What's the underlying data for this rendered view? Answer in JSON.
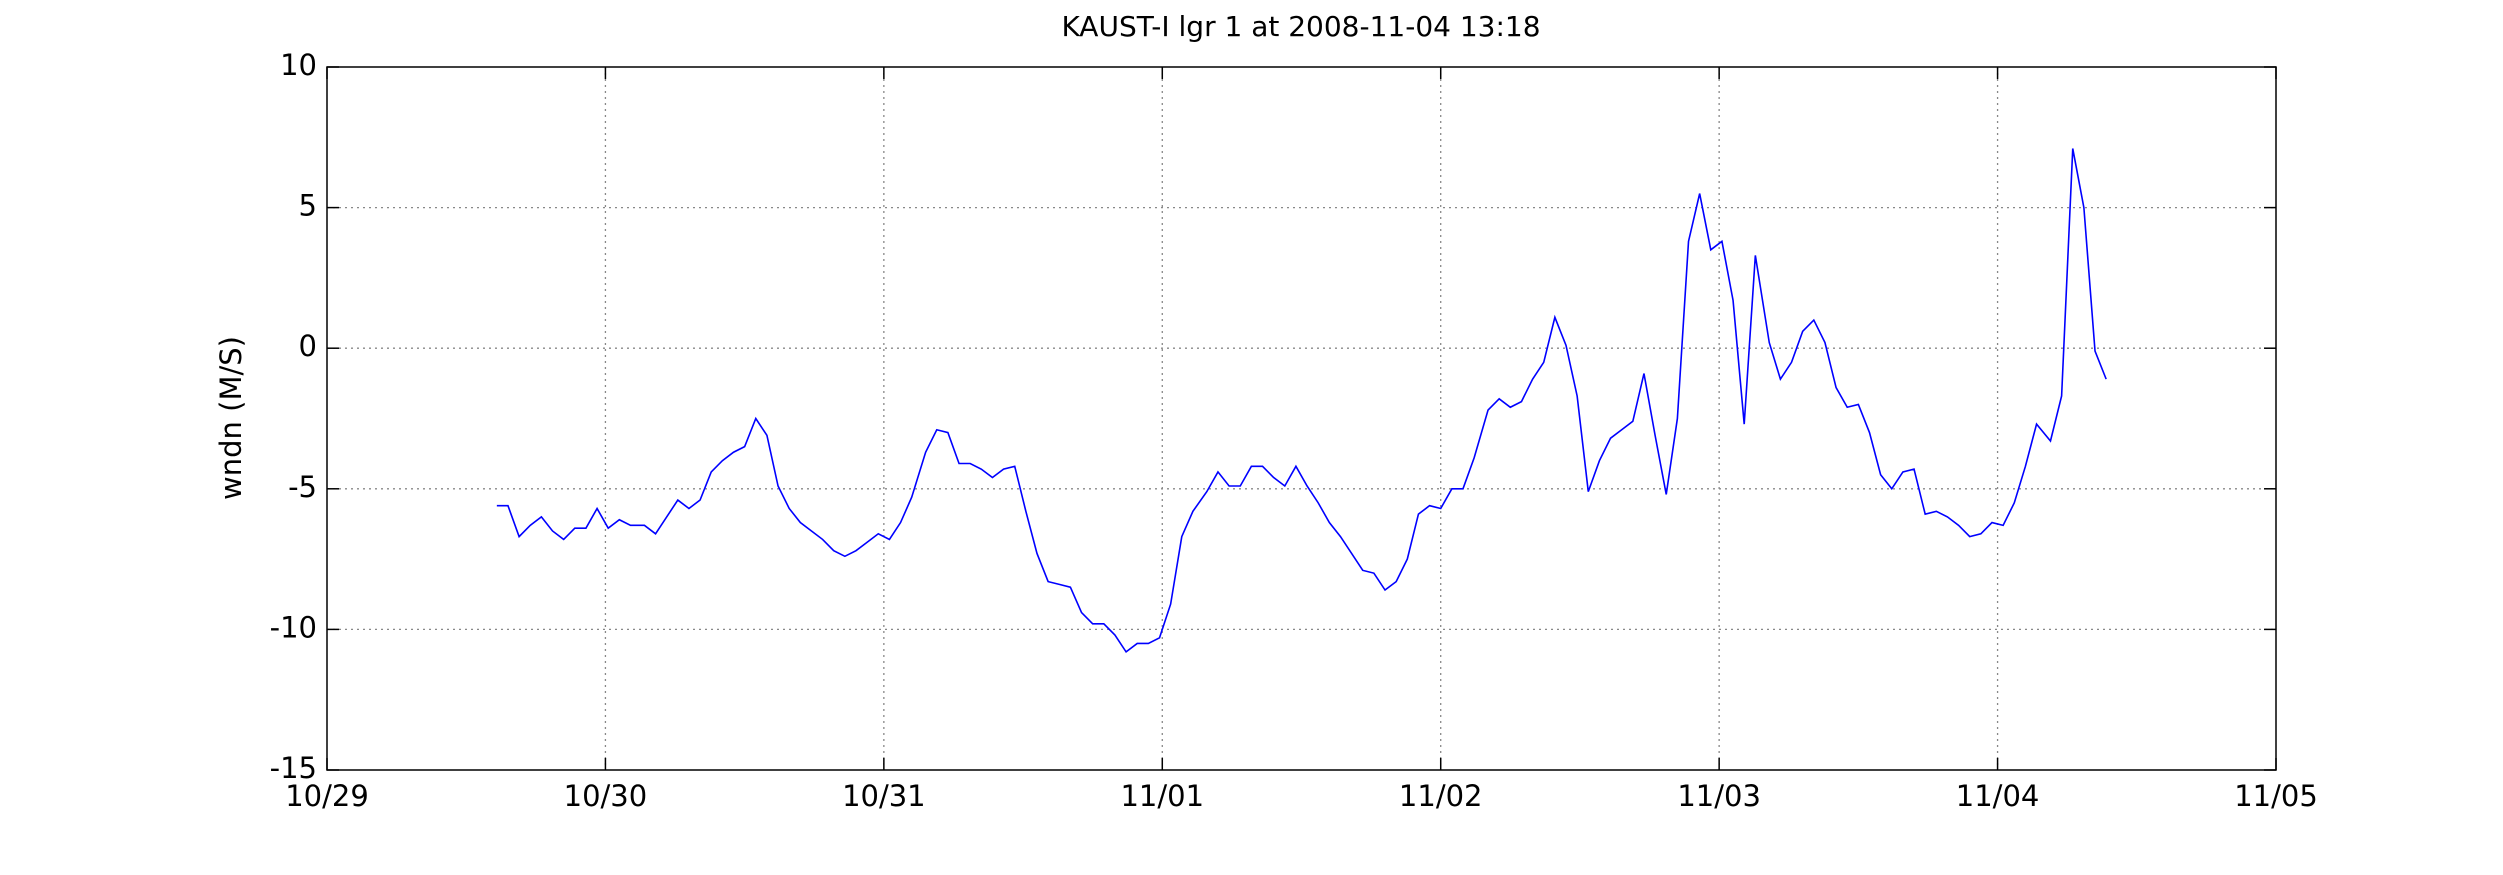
{
  "chart_data": {
    "type": "line",
    "title": "KAUST-I lgr 1 at 2008-11-04 13:18",
    "ylabel": "wndn (M/S)",
    "x": [
      0.61,
      0.65,
      0.69,
      0.73,
      0.77,
      0.81,
      0.85,
      0.89,
      0.93,
      0.97,
      1.01,
      1.05,
      1.09,
      1.14,
      1.18,
      1.22,
      1.26,
      1.3,
      1.34,
      1.38,
      1.42,
      1.46,
      1.5,
      1.54,
      1.58,
      1.62,
      1.66,
      1.7,
      1.74,
      1.78,
      1.82,
      1.86,
      1.9,
      1.94,
      1.98,
      2.02,
      2.06,
      2.1,
      2.15,
      2.19,
      2.23,
      2.27,
      2.31,
      2.35,
      2.39,
      2.43,
      2.47,
      2.51,
      2.55,
      2.59,
      2.63,
      2.67,
      2.71,
      2.75,
      2.79,
      2.83,
      2.87,
      2.91,
      2.95,
      2.99,
      3.03,
      3.07,
      3.11,
      3.16,
      3.2,
      3.24,
      3.28,
      3.32,
      3.36,
      3.4,
      3.44,
      3.48,
      3.52,
      3.56,
      3.6,
      3.64,
      3.68,
      3.72,
      3.76,
      3.8,
      3.84,
      3.88,
      3.92,
      3.96,
      4.0,
      4.04,
      4.08,
      4.12,
      4.17,
      4.21,
      4.25,
      4.29,
      4.33,
      4.37,
      4.41,
      4.45,
      4.49,
      4.53,
      4.57,
      4.61,
      4.65,
      4.69,
      4.73,
      4.77,
      4.81,
      4.85,
      4.89,
      4.93,
      4.97,
      5.01,
      5.05,
      5.09,
      5.13,
      5.18,
      5.22,
      5.26,
      5.3,
      5.34,
      5.38,
      5.42,
      5.46,
      5.5,
      5.54,
      5.58,
      5.62,
      5.66,
      5.7,
      5.74,
      5.78,
      5.82,
      5.86,
      5.9,
      5.94,
      5.98,
      6.02,
      6.06,
      6.1,
      6.14,
      6.19,
      6.23,
      6.27,
      6.31,
      6.35,
      6.39
    ],
    "series": [
      {
        "name": "wndn",
        "color": "#0000ff",
        "values": [
          -5.6,
          -5.6,
          -6.7,
          -6.3,
          -6.0,
          -6.5,
          -6.8,
          -6.4,
          -6.4,
          -5.7,
          -6.4,
          -6.1,
          -6.3,
          -6.3,
          -6.6,
          -6.0,
          -5.4,
          -5.7,
          -5.4,
          -4.4,
          -4.0,
          -3.7,
          -3.5,
          -2.5,
          -3.1,
          -4.9,
          -5.7,
          -6.2,
          -6.5,
          -6.8,
          -7.2,
          -7.4,
          -7.2,
          -6.9,
          -6.6,
          -6.8,
          -6.2,
          -5.3,
          -3.7,
          -2.9,
          -3.0,
          -4.1,
          -4.1,
          -4.3,
          -4.6,
          -4.3,
          -4.2,
          -5.8,
          -7.3,
          -8.3,
          -8.4,
          -8.5,
          -9.4,
          -9.8,
          -9.8,
          -10.2,
          -10.8,
          -10.5,
          -10.5,
          -10.3,
          -9.1,
          -6.7,
          -5.8,
          -5.1,
          -4.4,
          -4.9,
          -4.9,
          -4.2,
          -4.2,
          -4.6,
          -4.9,
          -4.2,
          -4.9,
          -5.5,
          -6.2,
          -6.7,
          -7.3,
          -7.9,
          -8.0,
          -8.6,
          -8.3,
          -7.5,
          -5.9,
          -5.6,
          -5.7,
          -5.0,
          -5.0,
          -3.9,
          -2.2,
          -1.8,
          -2.1,
          -1.9,
          -1.1,
          -0.5,
          1.1,
          0.1,
          -1.7,
          -5.1,
          -4.0,
          -3.2,
          -2.9,
          -2.6,
          -0.9,
          -3.1,
          -5.2,
          -2.5,
          3.8,
          5.5,
          3.5,
          3.8,
          1.7,
          -2.7,
          3.3,
          0.2,
          -1.1,
          -0.5,
          0.6,
          1.0,
          0.2,
          -1.4,
          -2.1,
          -2.0,
          -3.0,
          -4.5,
          -5.0,
          -4.4,
          -4.3,
          -5.9,
          -5.8,
          -6.0,
          -6.3,
          -6.7,
          -6.6,
          -6.2,
          -6.3,
          -5.5,
          -4.2,
          -2.7,
          -3.3,
          -1.7,
          7.1,
          5.0,
          -0.1,
          -1.1
        ]
      }
    ],
    "xlim": [
      0,
      7
    ],
    "xticks": [
      {
        "value": 0,
        "label": "10/29"
      },
      {
        "value": 1,
        "label": "10/30"
      },
      {
        "value": 2,
        "label": "10/31"
      },
      {
        "value": 3,
        "label": "11/01"
      },
      {
        "value": 4,
        "label": "11/02"
      },
      {
        "value": 5,
        "label": "11/03"
      },
      {
        "value": 6,
        "label": "11/04"
      },
      {
        "value": 7,
        "label": "11/05"
      }
    ],
    "ylim": [
      -15,
      10
    ],
    "yticks": [
      -15,
      -10,
      -5,
      0,
      5,
      10
    ],
    "grid": true
  }
}
